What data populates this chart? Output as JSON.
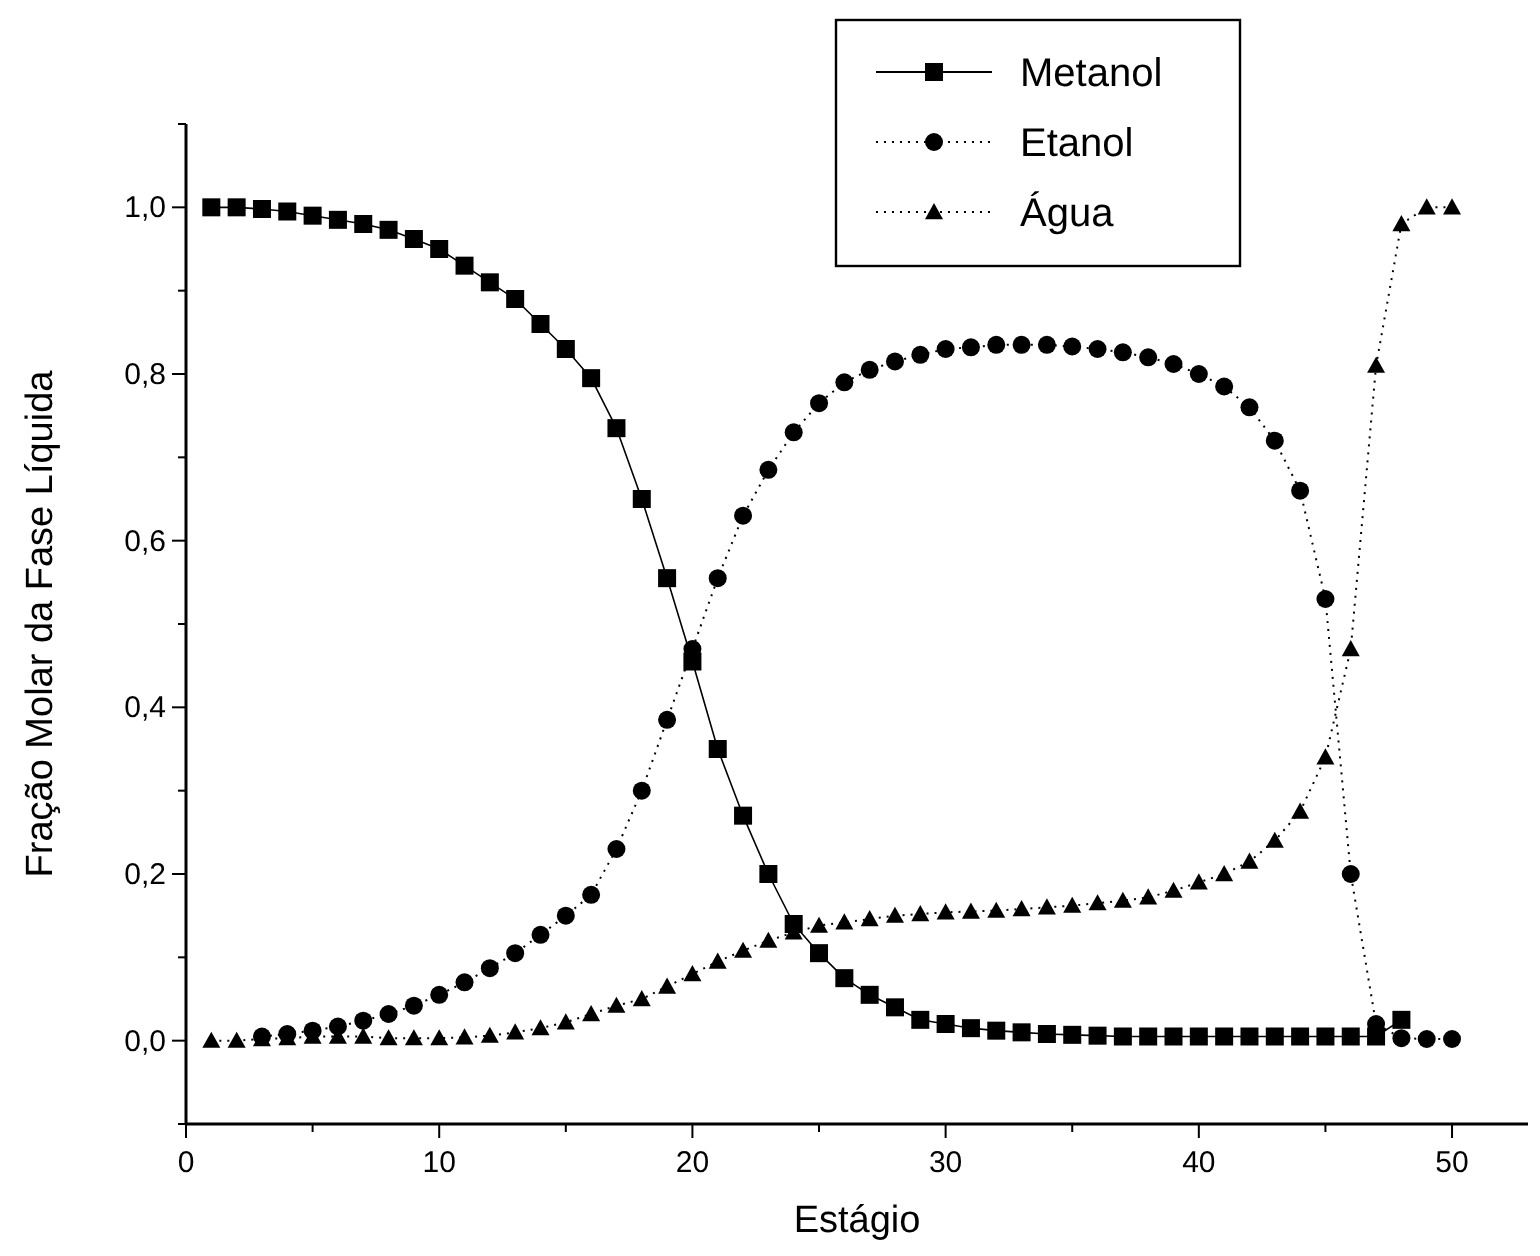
{
  "chart_data": {
    "type": "line",
    "xlabel": "Estágio",
    "ylabel": "Fração Molar da Fase Líquida",
    "x": [
      1,
      2,
      3,
      4,
      5,
      6,
      7,
      8,
      9,
      10,
      11,
      12,
      13,
      14,
      15,
      16,
      17,
      18,
      19,
      20,
      21,
      22,
      23,
      24,
      25,
      26,
      27,
      28,
      29,
      30,
      31,
      32,
      33,
      34,
      35,
      36,
      37,
      38,
      39,
      40,
      41,
      42,
      43,
      44,
      45,
      46,
      47,
      48,
      49,
      50
    ],
    "series": [
      {
        "name": "Metanol",
        "color": "#000000",
        "marker": "square",
        "line_style": "solid",
        "values": [
          1.0,
          1.0,
          0.998,
          0.995,
          0.99,
          0.985,
          0.98,
          0.973,
          0.962,
          0.95,
          0.93,
          0.91,
          0.89,
          0.86,
          0.83,
          0.795,
          0.735,
          0.65,
          0.555,
          0.455,
          0.35,
          0.27,
          0.2,
          0.14,
          0.105,
          0.075,
          0.055,
          0.04,
          0.025,
          0.02,
          0.015,
          0.012,
          0.01,
          0.008,
          0.007,
          0.006,
          0.005,
          0.005,
          0.005,
          0.005,
          0.005,
          0.005,
          0.005,
          0.005,
          0.005,
          0.005,
          0.005,
          0.025,
          null,
          null
        ]
      },
      {
        "name": "Etanol",
        "color": "#000000",
        "marker": "circle",
        "line_style": "dotted",
        "values": [
          null,
          null,
          0.005,
          0.008,
          0.012,
          0.017,
          0.024,
          0.032,
          0.042,
          0.055,
          0.07,
          0.087,
          0.105,
          0.127,
          0.15,
          0.175,
          0.23,
          0.3,
          0.385,
          0.47,
          0.555,
          0.63,
          0.685,
          0.73,
          0.765,
          0.79,
          0.805,
          0.815,
          0.823,
          0.83,
          0.832,
          0.835,
          0.835,
          0.835,
          0.833,
          0.83,
          0.826,
          0.82,
          0.812,
          0.8,
          0.785,
          0.76,
          0.72,
          0.66,
          0.53,
          0.2,
          0.02,
          0.003,
          0.002,
          0.002
        ]
      },
      {
        "name": "Água",
        "color": "#000000",
        "marker": "triangle",
        "line_style": "dotted",
        "values": [
          0,
          0,
          0.002,
          0.003,
          0.005,
          0.005,
          0.005,
          0.003,
          0.003,
          0.003,
          0.004,
          0.006,
          0.01,
          0.015,
          0.022,
          0.032,
          0.042,
          0.05,
          0.065,
          0.08,
          0.095,
          0.108,
          0.12,
          0.13,
          0.138,
          0.142,
          0.146,
          0.15,
          0.152,
          0.154,
          0.155,
          0.156,
          0.158,
          0.16,
          0.162,
          0.165,
          0.168,
          0.172,
          0.18,
          0.19,
          0.2,
          0.215,
          0.24,
          0.275,
          0.34,
          0.47,
          0.81,
          0.98,
          1.0,
          1.0
        ]
      }
    ],
    "xlim": [
      0,
      53
    ],
    "ylim": [
      -0.1,
      1.1
    ],
    "xticks": [
      0,
      {
        "value": 5,
        "label": null
      },
      10,
      {
        "value": 15,
        "label": null
      },
      20,
      {
        "value": 25,
        "label": null
      },
      30,
      {
        "value": 35,
        "label": null
      },
      40,
      {
        "value": 45,
        "label": null
      },
      50
    ],
    "yticks": [
      {
        "value": -0.1,
        "label": null
      },
      {
        "value": 0,
        "label": "0,0"
      },
      {
        "value": 0.1,
        "label": null
      },
      {
        "value": 0.2,
        "label": "0,2"
      },
      {
        "value": 0.3,
        "label": null
      },
      {
        "value": 0.4,
        "label": "0,4"
      },
      {
        "value": 0.5,
        "label": null
      },
      {
        "value": 0.6,
        "label": "0,6"
      },
      {
        "value": 0.7,
        "label": null
      },
      {
        "value": 0.8,
        "label": "0,8"
      },
      {
        "value": 0.9,
        "label": null
      },
      {
        "value": 1.0,
        "label": "1,0"
      },
      {
        "value": 1.1,
        "label": null
      }
    ],
    "grid": false,
    "legend": "top"
  }
}
